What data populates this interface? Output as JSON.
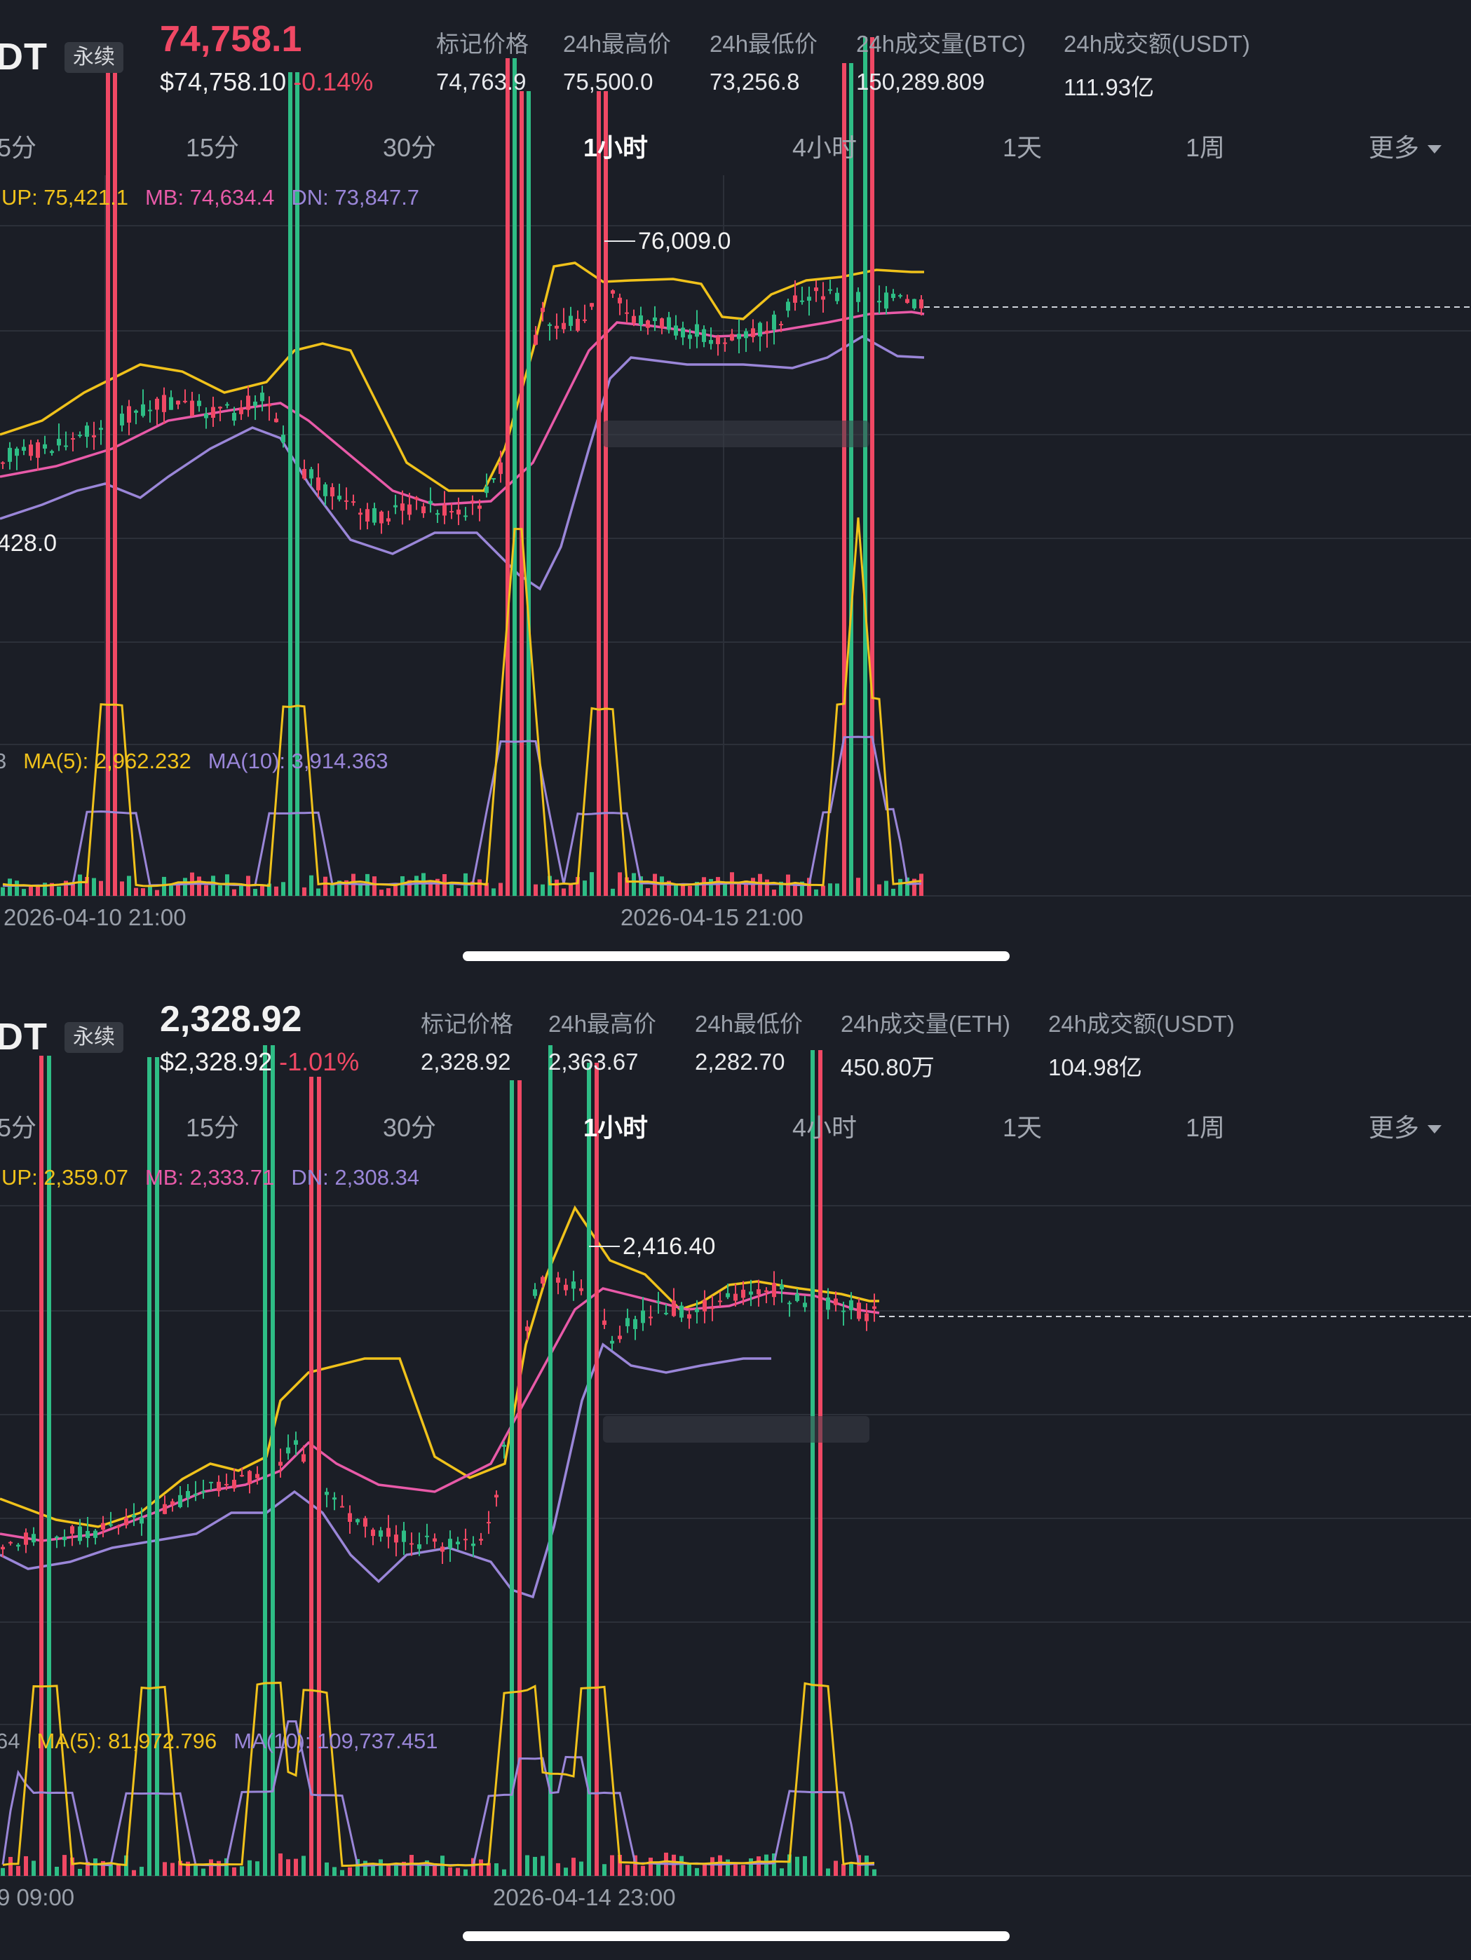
{
  "colors": {
    "background": "#1b1e26",
    "grid": "#2c3039",
    "red": "#f04864",
    "green": "#2ebd85",
    "up_band": "#f0c21b",
    "mid_band": "#e85aa8",
    "low_band": "#9a86d8"
  },
  "panels": [
    {
      "symbol": "DT",
      "tag": "永续",
      "last_price": "74,758.1",
      "last_price_color": "red",
      "usd_price": "$74,758.10",
      "change_pct": "-0.14%",
      "stats": [
        {
          "label": "标记价格",
          "value": "74,763.9"
        },
        {
          "label": "24h最高价",
          "value": "75,500.0"
        },
        {
          "label": "24h最低价",
          "value": "73,256.8"
        },
        {
          "label": "24h成交量(BTC)",
          "value": "150,289.809"
        },
        {
          "label": "24h成交额(USDT)",
          "value": "111.93亿"
        }
      ],
      "tabs": [
        "5分",
        "15分",
        "30分",
        "1小时",
        "4小时",
        "1天",
        "1周",
        "更多"
      ],
      "active_tab": "1小时",
      "boll": {
        "up": "UP: 75,421.1",
        "mb": "MB: 74,634.4",
        "dn": "DN: 73,847.7"
      },
      "high_marker": "76,009.0",
      "low_marker": "428.0",
      "volume_ma": {
        "prefix": "3",
        "ma5": "MA(5): 2,962.232",
        "ma10": "MA(10): 3,914.363"
      },
      "x_labels": [
        "2026-04-10 21:00",
        "2026-04-15 21:00"
      ]
    },
    {
      "symbol": "DT",
      "tag": "永续",
      "last_price": "2,328.92",
      "last_price_color": "white",
      "usd_price": "$2,328.92",
      "change_pct": "-1.01%",
      "stats": [
        {
          "label": "标记价格",
          "value": "2,328.92"
        },
        {
          "label": "24h最高价",
          "value": "2,363.67"
        },
        {
          "label": "24h最低价",
          "value": "2,282.70"
        },
        {
          "label": "24h成交量(ETH)",
          "value": "450.80万"
        },
        {
          "label": "24h成交额(USDT)",
          "value": "104.98亿"
        }
      ],
      "tabs": [
        "5分",
        "15分",
        "30分",
        "1小时",
        "4小时",
        "1天",
        "1周",
        "更多"
      ],
      "active_tab": "1小时",
      "boll": {
        "up": "UP: 2,359.07",
        "mb": "MB: 2,333.71",
        "dn": "DN: 2,308.34"
      },
      "high_marker": "2,416.40",
      "volume_ma": {
        "prefix": "64",
        "ma5": "MA(5): 81,972.796",
        "ma10": "MA(10): 109,737.451"
      },
      "x_labels": [
        "9 09:00",
        "2026-04-14 23:00"
      ]
    }
  ]
}
